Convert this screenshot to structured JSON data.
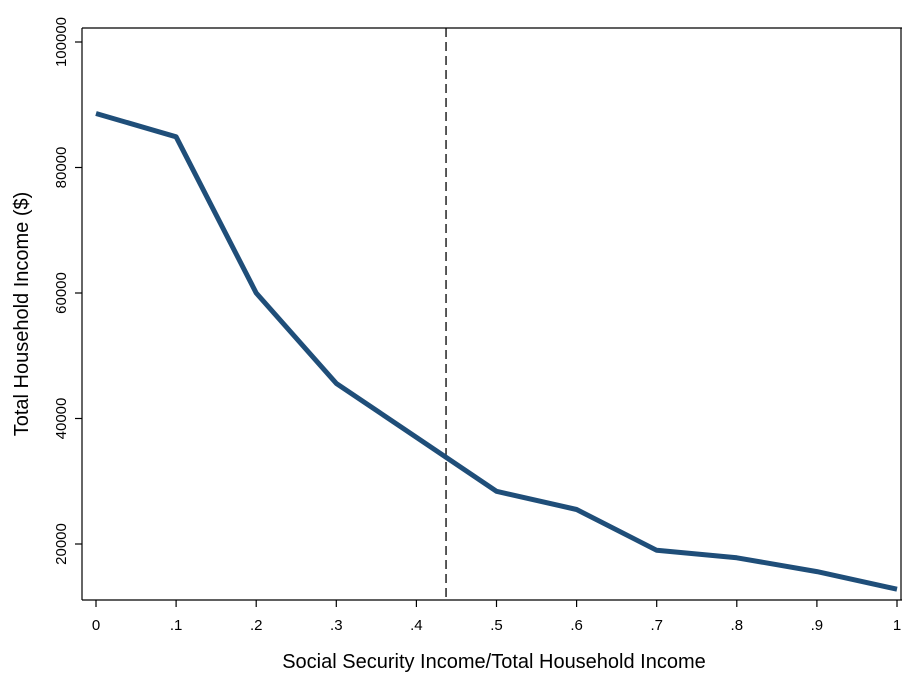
{
  "chart_data": {
    "type": "line",
    "title": "",
    "xlabel": "Social Security Income/Total Household Income",
    "ylabel": "Total Household Income ($)",
    "xlim": [
      0,
      1
    ],
    "ylim": [
      10000,
      100000
    ],
    "x_ticks": [
      {
        "value": 0,
        "label": "0"
      },
      {
        "value": 0.1,
        "label": ".1"
      },
      {
        "value": 0.2,
        "label": ".2"
      },
      {
        "value": 0.3,
        "label": ".3"
      },
      {
        "value": 0.4,
        "label": ".4"
      },
      {
        "value": 0.5,
        "label": ".5"
      },
      {
        "value": 0.6,
        "label": ".6"
      },
      {
        "value": 0.7,
        "label": ".7"
      },
      {
        "value": 0.8,
        "label": ".8"
      },
      {
        "value": 0.9,
        "label": ".9"
      },
      {
        "value": 1,
        "label": "1"
      }
    ],
    "y_ticks": [
      {
        "value": 20000,
        "label": "20000"
      },
      {
        "value": 40000,
        "label": "40000"
      },
      {
        "value": 60000,
        "label": "60000"
      },
      {
        "value": 80000,
        "label": "80000"
      },
      {
        "value": 100000,
        "label": "100000"
      }
    ],
    "grid": false,
    "series": [
      {
        "color": "#1f4e79",
        "x": [
          0,
          0.1,
          0.2,
          0.3,
          0.4,
          0.5,
          0.6,
          0.7,
          0.8,
          0.9,
          1.0
        ],
        "y": [
          88600,
          84900,
          60000,
          45600,
          37000,
          28400,
          25500,
          19000,
          17800,
          15600,
          12800
        ]
      }
    ],
    "reference_line": {
      "axis": "x",
      "value": 0.437,
      "style": "dashed",
      "color": "#000000"
    }
  }
}
